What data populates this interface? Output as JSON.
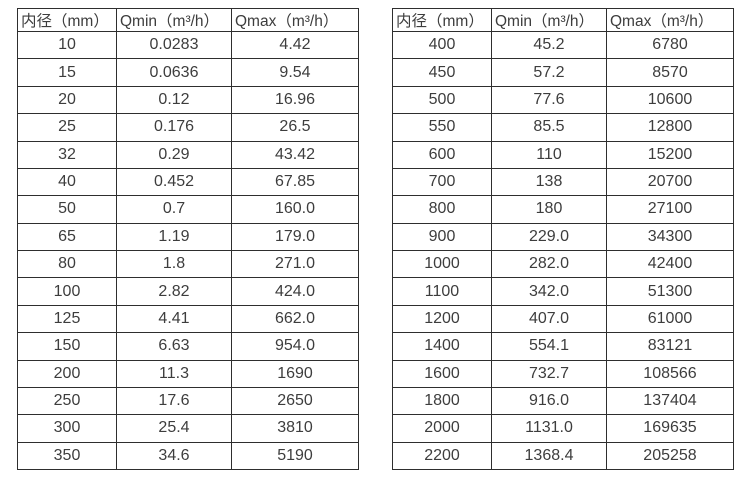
{
  "colors": {
    "background": "#ffffff",
    "table_border": "#2e2e2e",
    "text": "#3d3d3d"
  },
  "chart_data": [
    {
      "type": "table",
      "title": "",
      "columns": [
        "内径（mm）",
        "Qmin（m³/h）",
        "Qmax（m³/h）"
      ],
      "rows": [
        [
          "10",
          "0.0283",
          "4.42"
        ],
        [
          "15",
          "0.0636",
          "9.54"
        ],
        [
          "20",
          "0.12",
          "16.96"
        ],
        [
          "25",
          "0.176",
          "26.5"
        ],
        [
          "32",
          "0.29",
          "43.42"
        ],
        [
          "40",
          "0.452",
          "67.85"
        ],
        [
          "50",
          "0.7",
          "160.0"
        ],
        [
          "65",
          "1.19",
          "179.0"
        ],
        [
          "80",
          "1.8",
          "271.0"
        ],
        [
          "100",
          "2.82",
          "424.0"
        ],
        [
          "125",
          "4.41",
          "662.0"
        ],
        [
          "150",
          "6.63",
          "954.0"
        ],
        [
          "200",
          "11.3",
          "1690"
        ],
        [
          "250",
          "17.6",
          "2650"
        ],
        [
          "300",
          "25.4",
          "3810"
        ],
        [
          "350",
          "34.6",
          "5190"
        ]
      ]
    },
    {
      "type": "table",
      "title": "",
      "columns": [
        "内径（mm）",
        "Qmin（m³/h）",
        "Qmax（m³/h）"
      ],
      "rows": [
        [
          "400",
          "45.2",
          "6780"
        ],
        [
          "450",
          "57.2",
          "8570"
        ],
        [
          "500",
          "77.6",
          "10600"
        ],
        [
          "550",
          "85.5",
          "12800"
        ],
        [
          "600",
          "110",
          "15200"
        ],
        [
          "700",
          "138",
          "20700"
        ],
        [
          "800",
          "180",
          "27100"
        ],
        [
          "900",
          "229.0",
          "34300"
        ],
        [
          "1000",
          "282.0",
          "42400"
        ],
        [
          "1100",
          "342.0",
          "51300"
        ],
        [
          "1200",
          "407.0",
          "61000"
        ],
        [
          "1400",
          "554.1",
          "83121"
        ],
        [
          "1600",
          "732.7",
          "108566"
        ],
        [
          "1800",
          "916.0",
          "137404"
        ],
        [
          "2000",
          "1131.0",
          "169635"
        ],
        [
          "2200",
          "1368.4",
          "205258"
        ]
      ]
    }
  ]
}
